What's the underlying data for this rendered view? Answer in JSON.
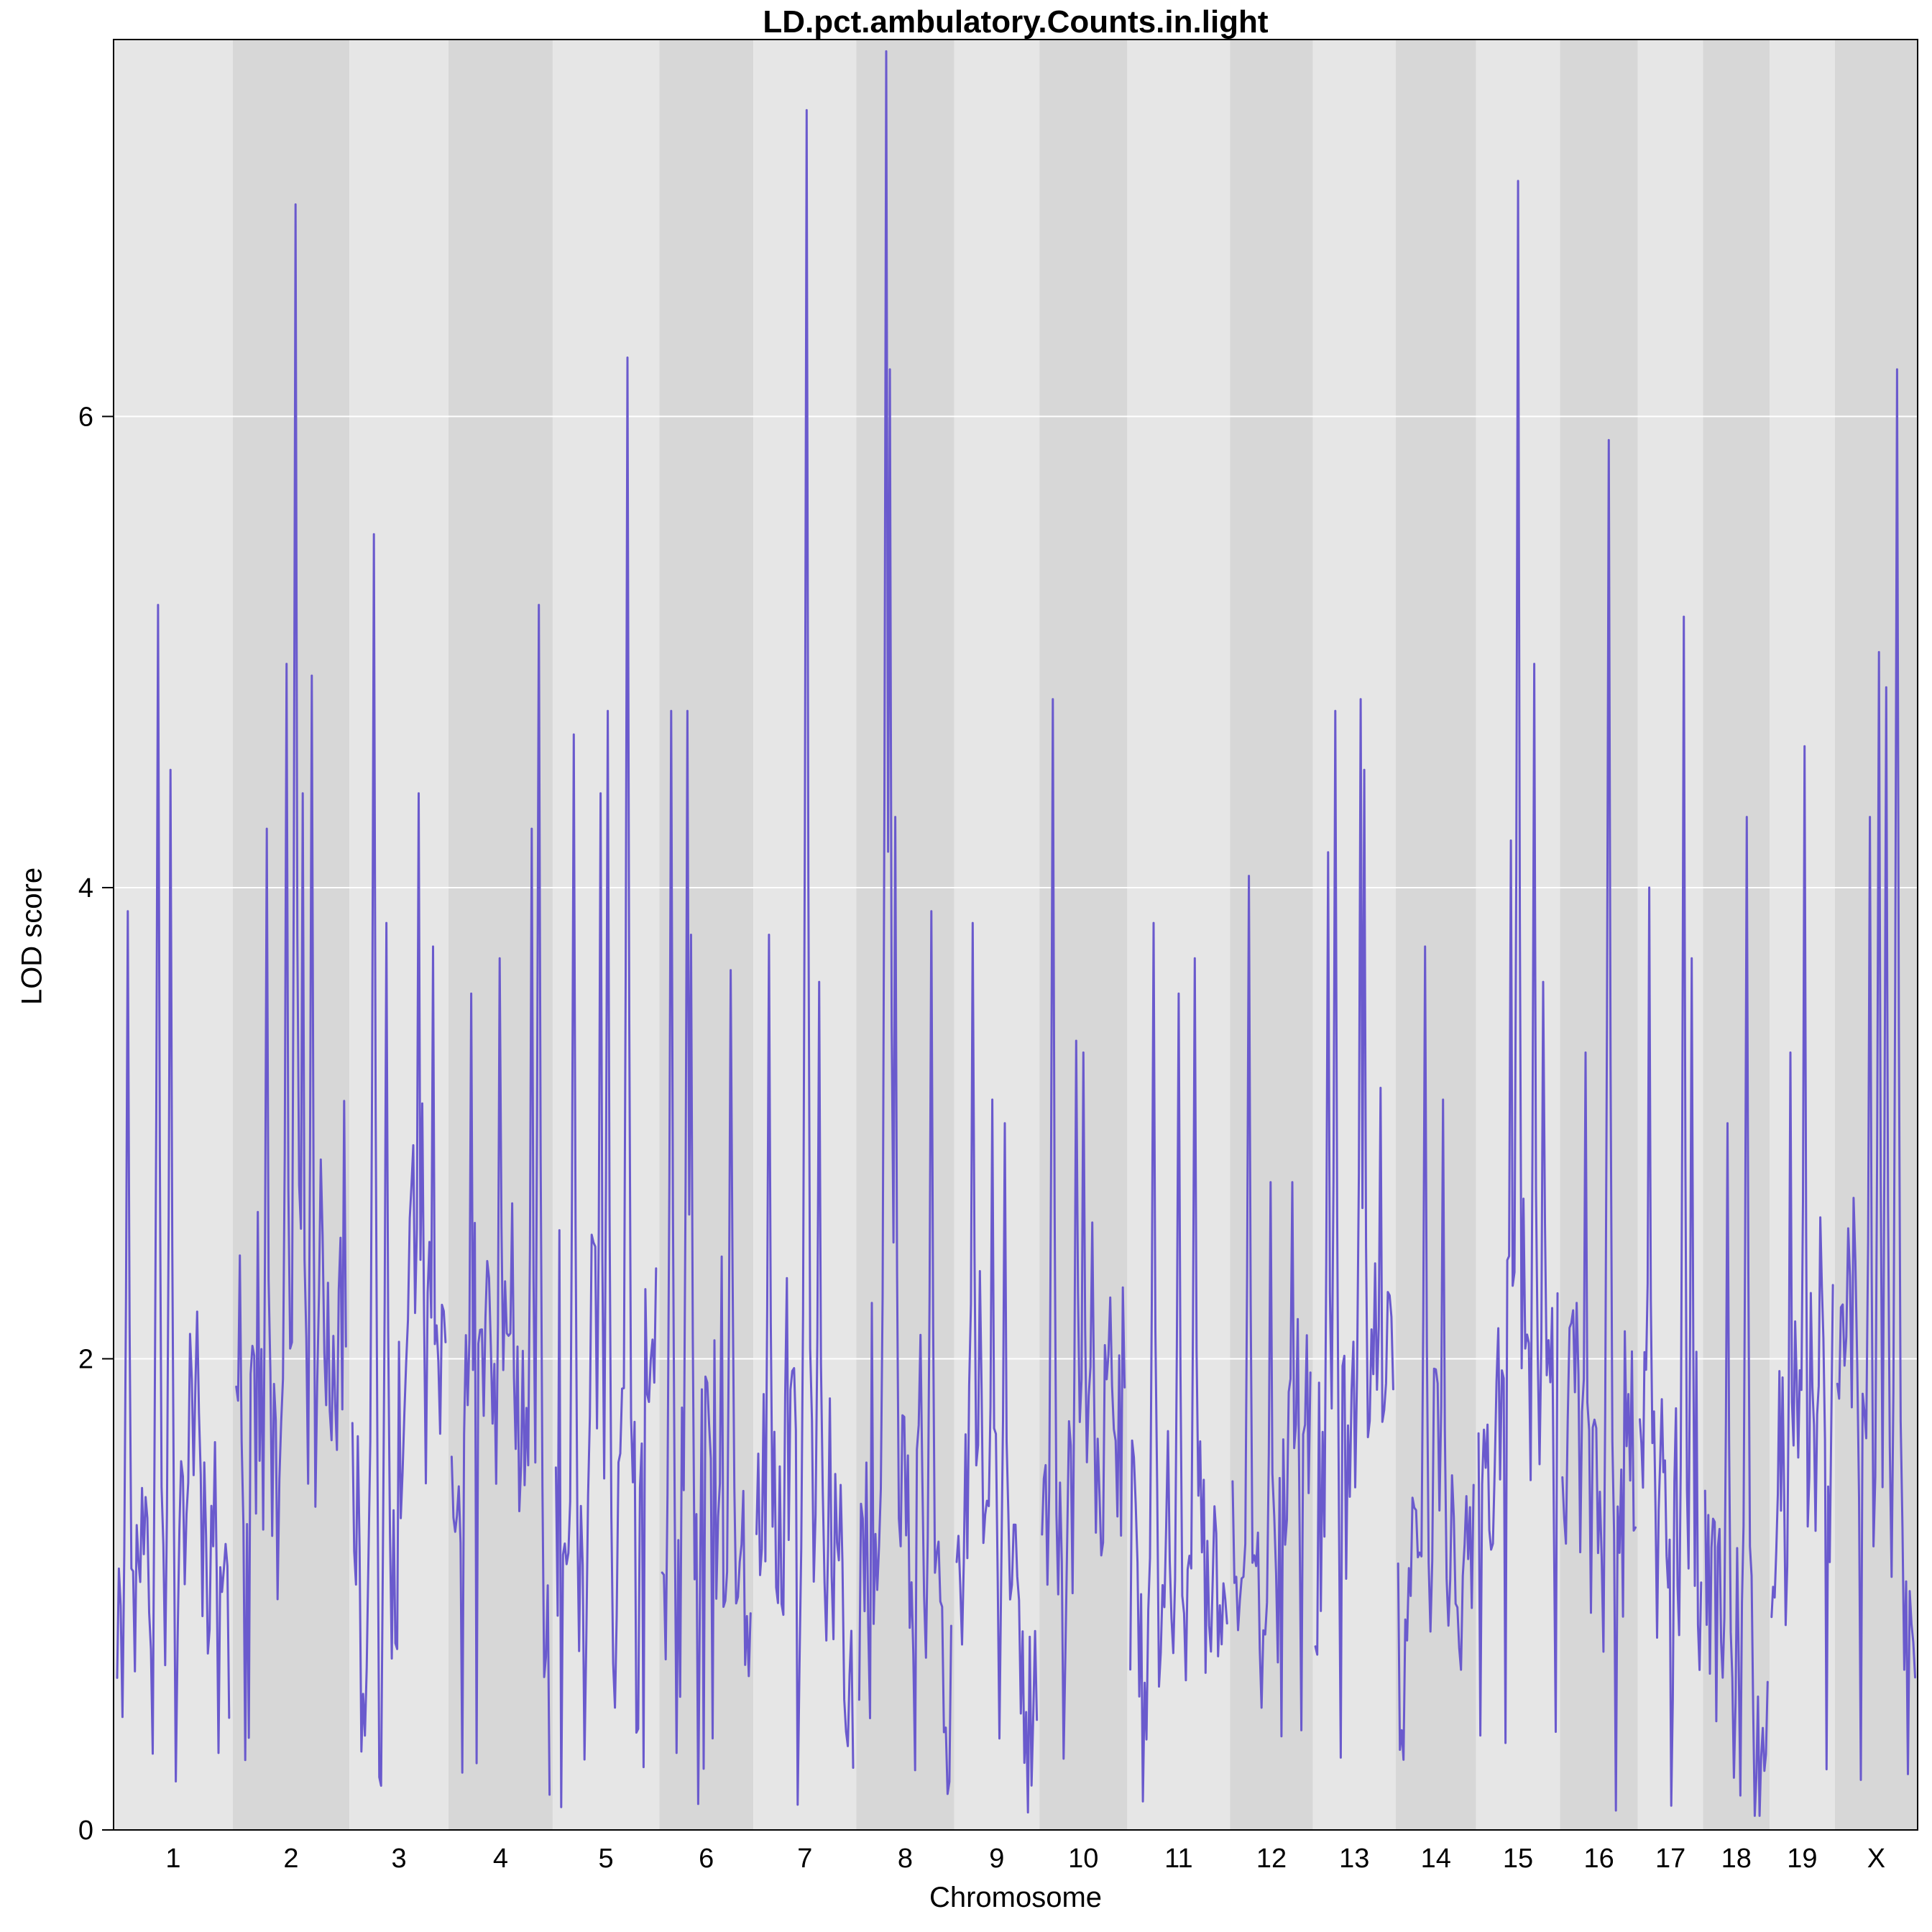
{
  "chart_data": {
    "type": "line",
    "title": "LD.pct.ambulatory.Counts.in.light",
    "xlabel": "Chromosome",
    "ylabel": "LOD score",
    "ylim": [
      0,
      7.6
    ],
    "yticks": [
      0,
      2,
      4,
      6
    ],
    "legend": "none",
    "grid": "white horizontal lines at y ticks over gray alternating chromosome bands",
    "baseline_range": [
      0.1,
      3.6
    ],
    "colors": {
      "line": "#6a5acd",
      "band_light": "#e6e6e6",
      "band_dark": "#d7d7d7",
      "grid": "#ffffff",
      "axis": "#000000"
    },
    "chromosomes": [
      {
        "name": "1",
        "rel": 95,
        "base": 1.15,
        "peaks": [
          {
            "pos": 0.09,
            "lod": 3.9
          },
          {
            "pos": 0.36,
            "lod": 5.2
          },
          {
            "pos": 0.47,
            "lod": 4.5
          },
          {
            "pos": 0.7,
            "lod": 2.2
          }
        ]
      },
      {
        "name": "2",
        "rel": 93,
        "base": 1.65,
        "peaks": [
          {
            "pos": 0.28,
            "lod": 4.25
          },
          {
            "pos": 0.45,
            "lod": 4.95
          },
          {
            "pos": 0.54,
            "lod": 6.9
          },
          {
            "pos": 0.6,
            "lod": 4.4
          },
          {
            "pos": 0.67,
            "lod": 4.9
          }
        ]
      },
      {
        "name": "3",
        "rel": 79,
        "base": 1.35,
        "peaks": [
          {
            "pos": 0.22,
            "lod": 5.5
          },
          {
            "pos": 0.35,
            "lod": 3.85
          },
          {
            "pos": 0.7,
            "lod": 4.4
          },
          {
            "pos": 0.84,
            "lod": 3.75
          }
        ]
      },
      {
        "name": "4",
        "rel": 83,
        "base": 1.35,
        "peaks": [
          {
            "pos": 0.2,
            "lod": 3.55
          },
          {
            "pos": 0.49,
            "lod": 3.7
          },
          {
            "pos": 0.81,
            "lod": 4.25
          },
          {
            "pos": 0.88,
            "lod": 5.2
          }
        ]
      },
      {
        "name": "5",
        "rel": 85,
        "base": 1.4,
        "peaks": [
          {
            "pos": 0.18,
            "lod": 4.65
          },
          {
            "pos": 0.44,
            "lod": 4.4
          },
          {
            "pos": 0.51,
            "lod": 4.75
          },
          {
            "pos": 0.71,
            "lod": 6.25
          }
        ]
      },
      {
        "name": "6",
        "rel": 75,
        "base": 1.3,
        "peaks": [
          {
            "pos": 0.09,
            "lod": 4.75
          },
          {
            "pos": 0.27,
            "lod": 4.75
          },
          {
            "pos": 0.32,
            "lod": 3.8
          },
          {
            "pos": 0.75,
            "lod": 3.65
          }
        ]
      },
      {
        "name": "7",
        "rel": 82,
        "base": 1.15,
        "peaks": [
          {
            "pos": 0.12,
            "lod": 3.8
          },
          {
            "pos": 0.5,
            "lod": 7.3
          },
          {
            "pos": 0.63,
            "lod": 3.6
          }
        ]
      },
      {
        "name": "8",
        "rel": 78,
        "base": 1.25,
        "peaks": [
          {
            "pos": 0.29,
            "lod": 7.55
          },
          {
            "pos": 0.33,
            "lod": 6.2
          },
          {
            "pos": 0.38,
            "lod": 4.3
          },
          {
            "pos": 0.76,
            "lod": 3.9
          }
        ]
      },
      {
        "name": "9",
        "rel": 68,
        "base": 1.1,
        "peaks": [
          {
            "pos": 0.19,
            "lod": 3.85
          },
          {
            "pos": 0.44,
            "lod": 3.1
          },
          {
            "pos": 0.59,
            "lod": 3.0
          }
        ]
      },
      {
        "name": "10",
        "rel": 70,
        "base": 1.2,
        "peaks": [
          {
            "pos": 0.13,
            "lod": 4.8
          },
          {
            "pos": 0.4,
            "lod": 3.35
          },
          {
            "pos": 0.49,
            "lod": 3.3
          }
        ]
      },
      {
        "name": "11",
        "rel": 82,
        "base": 1.45,
        "peaks": [
          {
            "pos": 0.23,
            "lod": 3.85
          },
          {
            "pos": 0.49,
            "lod": 3.55
          },
          {
            "pos": 0.66,
            "lod": 3.7
          }
        ]
      },
      {
        "name": "12",
        "rel": 66,
        "base": 1.1,
        "peaks": [
          {
            "pos": 0.2,
            "lod": 4.05
          },
          {
            "pos": 0.47,
            "lod": 2.75
          },
          {
            "pos": 0.76,
            "lod": 2.75
          }
        ]
      },
      {
        "name": "13",
        "rel": 66,
        "base": 1.4,
        "peaks": [
          {
            "pos": 0.15,
            "lod": 4.15
          },
          {
            "pos": 0.26,
            "lod": 4.75
          },
          {
            "pos": 0.56,
            "lod": 4.8
          },
          {
            "pos": 0.61,
            "lod": 4.5
          },
          {
            "pos": 0.82,
            "lod": 3.15
          }
        ]
      },
      {
        "name": "14",
        "rel": 64,
        "base": 1.25,
        "peaks": [
          {
            "pos": 0.36,
            "lod": 3.75
          },
          {
            "pos": 0.59,
            "lod": 3.1
          }
        ]
      },
      {
        "name": "15",
        "rel": 67,
        "base": 1.45,
        "peaks": [
          {
            "pos": 0.4,
            "lod": 4.2
          },
          {
            "pos": 0.48,
            "lod": 7.0
          },
          {
            "pos": 0.69,
            "lod": 4.95
          },
          {
            "pos": 0.81,
            "lod": 3.6
          }
        ]
      },
      {
        "name": "16",
        "rel": 62,
        "base": 1.3,
        "peaks": [
          {
            "pos": 0.31,
            "lod": 3.3
          },
          {
            "pos": 0.61,
            "lod": 5.9
          }
        ]
      },
      {
        "name": "17",
        "rel": 52,
        "base": 1.3,
        "peaks": [
          {
            "pos": 0.15,
            "lod": 4.0
          },
          {
            "pos": 0.69,
            "lod": 5.15
          },
          {
            "pos": 0.83,
            "lod": 3.7
          }
        ]
      },
      {
        "name": "18",
        "rel": 53,
        "base": 1.2,
        "peaks": [
          {
            "pos": 0.34,
            "lod": 3.0
          },
          {
            "pos": 0.66,
            "lod": 4.3
          }
        ]
      },
      {
        "name": "19",
        "rel": 52,
        "base": 1.15,
        "peaks": [
          {
            "pos": 0.29,
            "lod": 3.3
          },
          {
            "pos": 0.52,
            "lod": 4.6
          },
          {
            "pos": 0.77,
            "lod": 2.6
          }
        ]
      },
      {
        "name": "X",
        "rel": 66,
        "base": 1.6,
        "peaks": [
          {
            "pos": 0.42,
            "lod": 4.3
          },
          {
            "pos": 0.53,
            "lod": 5.0
          },
          {
            "pos": 0.62,
            "lod": 4.85
          },
          {
            "pos": 0.76,
            "lod": 6.2
          }
        ]
      }
    ]
  }
}
